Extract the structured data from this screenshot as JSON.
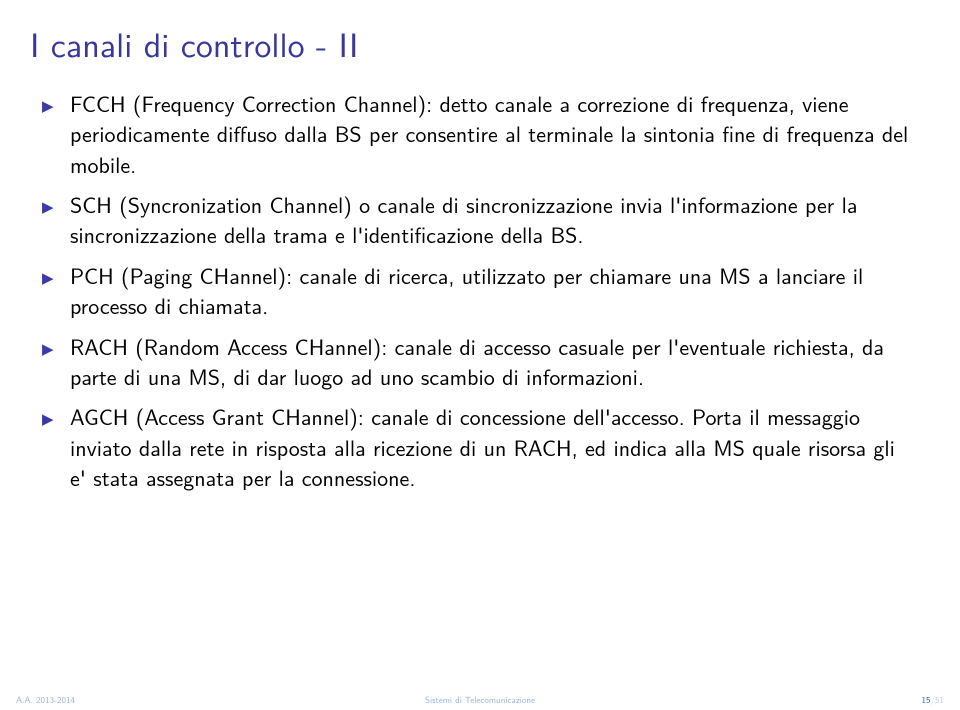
{
  "title": "I canali di controllo - II",
  "bullets": [
    "FCCH (Frequency Correction Channel): detto canale a correzione di frequenza, viene periodicamente diffuso dalla BS per consentire al terminale la sintonia fine di frequenza del mobile.",
    "SCH (Syncronization Channel) o canale di sincronizzazione invia l'informazione per la sincronizzazione della trama e l'identificazione della BS.",
    "PCH (Paging CHannel): canale di ricerca, utilizzato per chiamare una MS a lanciare il processo di chiamata.",
    "RACH (Random Access CHannel): canale di accesso casuale per l'eventuale richiesta, da parte di una MS, di dar luogo ad uno scambio di informazioni.",
    "AGCH (Access Grant CHannel): canale di concessione dell'accesso. Porta il messaggio inviato dalla rete in risposta alla ricezione di un RACH, ed indica alla MS quale risorsa gli e' stata assegnata per la connessione."
  ],
  "footer": {
    "left": "A.A. 2013-2014",
    "center": "Sistemi di Telecomunicazione",
    "page_current": "15",
    "page_sep": "/",
    "page_total": "51"
  },
  "colors": {
    "title": "#38389c",
    "bullet": "#3a3aa8",
    "footer": "#3060bf",
    "background": "#ffffff",
    "text": "#000000"
  },
  "typography": {
    "title_fontsize": 34,
    "body_fontsize": 22,
    "footer_fontsize": 9,
    "line_height": 1.38
  }
}
